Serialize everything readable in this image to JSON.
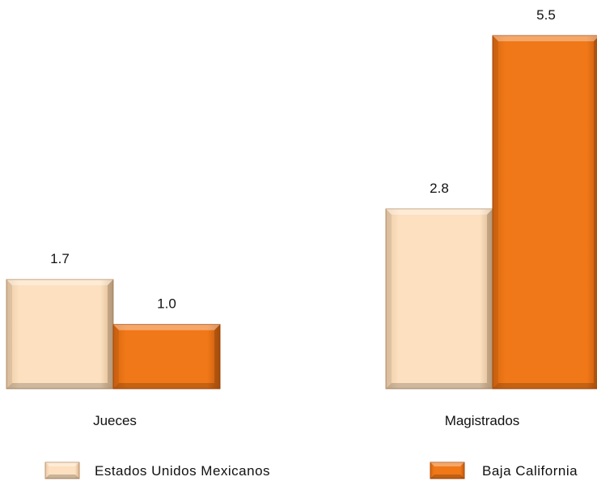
{
  "chart_data": {
    "type": "bar",
    "categories": [
      "Jueces",
      "Magistrados"
    ],
    "series": [
      {
        "name": "Estados Unidos Mexicanos",
        "values": [
          1.7,
          2.8
        ],
        "color": "#FCE0C0",
        "edge": "#B8926A"
      },
      {
        "name": "Baja California",
        "values": [
          1.0,
          5.5
        ],
        "color": "#F07818",
        "edge": "#A84A0C"
      }
    ],
    "value_labels": [
      [
        "1.7",
        "2.8"
      ],
      [
        "1.0",
        "5.5"
      ]
    ],
    "title": "",
    "xlabel": "",
    "ylabel": "",
    "ylim": [
      0,
      5.5
    ],
    "grid": false,
    "legend_position": "bottom"
  }
}
